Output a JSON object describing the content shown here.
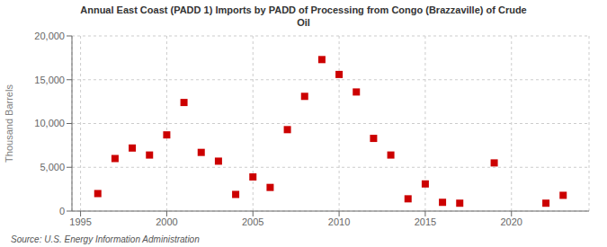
{
  "chart_data": {
    "type": "scatter",
    "title": "Annual East Coast (PADD 1) Imports by PADD of Processing from Congo (Brazzaville) of Crude\nOil",
    "ylabel": "Thousand Barrels",
    "source": "Source: U.S. Energy Information Administration",
    "x": [
      1996,
      1997,
      1998,
      1999,
      2000,
      2001,
      2002,
      2003,
      2004,
      2005,
      2006,
      2007,
      2008,
      2009,
      2010,
      2011,
      2012,
      2013,
      2014,
      2015,
      2016,
      2017,
      2019,
      2022,
      2023
    ],
    "values": [
      2000,
      6000,
      7200,
      6400,
      8700,
      12400,
      6700,
      5700,
      1900,
      3900,
      2700,
      9300,
      13100,
      17300,
      15600,
      13600,
      8300,
      6400,
      1400,
      3100,
      1000,
      900,
      5500,
      900,
      1800
    ],
    "color": "#cc0000",
    "marker": "square",
    "xlim": [
      1994.5,
      2024.5
    ],
    "ylim": [
      0,
      20000
    ],
    "xticks": [
      1995,
      2000,
      2005,
      2010,
      2015,
      2020
    ],
    "yticks": [
      0,
      {
        "value": 5000,
        "label": "5,000"
      },
      {
        "value": 10000,
        "label": "10,000"
      },
      {
        "value": 15000,
        "label": "15,000"
      },
      {
        "value": 20000,
        "label": "20,000"
      }
    ],
    "grid": true
  }
}
